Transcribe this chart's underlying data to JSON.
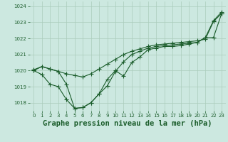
{
  "background_color": "#cce8e0",
  "grid_color": "#aaccbb",
  "line_color": "#1a5c2a",
  "xlabel": "Graphe pression niveau de la mer (hPa)",
  "xlabel_fontsize": 7.5,
  "ylim": [
    1017.5,
    1024.3
  ],
  "xlim": [
    -0.5,
    23.5
  ],
  "yticks": [
    1018,
    1019,
    1020,
    1021,
    1022,
    1023,
    1024
  ],
  "xticks": [
    0,
    1,
    2,
    3,
    4,
    5,
    6,
    7,
    8,
    9,
    10,
    11,
    12,
    13,
    14,
    15,
    16,
    17,
    18,
    19,
    20,
    21,
    22,
    23
  ],
  "series1": [
    1020.05,
    1020.25,
    1020.1,
    1019.95,
    1019.8,
    1019.7,
    1019.6,
    1019.8,
    1020.1,
    1020.4,
    1020.7,
    1021.0,
    1021.2,
    1021.35,
    1021.5,
    1021.6,
    1021.65,
    1021.7,
    1021.75,
    1021.8,
    1021.85,
    1021.95,
    1023.05,
    1023.55
  ],
  "series2": [
    1020.0,
    1019.75,
    1019.15,
    1019.0,
    1018.2,
    1017.65,
    1017.7,
    1018.0,
    1018.55,
    1019.05,
    1019.95,
    1020.55,
    1021.0,
    1021.2,
    1021.4,
    1021.5,
    1021.55,
    1021.6,
    1021.65,
    1021.7,
    1021.75,
    1022.05,
    1022.05,
    1023.55
  ],
  "series3": [
    1020.0,
    1020.25,
    1020.1,
    1019.95,
    1019.15,
    1017.65,
    1017.7,
    1018.0,
    1018.55,
    1019.45,
    1020.0,
    1019.65,
    1020.5,
    1020.85,
    1021.3,
    1021.4,
    1021.5,
    1021.5,
    1021.55,
    1021.65,
    1021.75,
    1022.05,
    1023.1,
    1023.65
  ]
}
